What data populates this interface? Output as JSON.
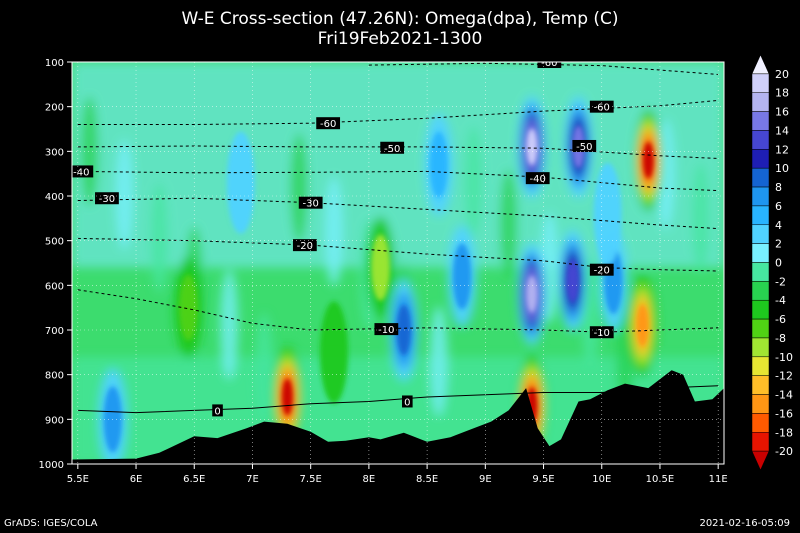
{
  "chart_data": {
    "type": "heatmap",
    "title": "W-E Cross-section (47.26N): Omega(dpa), Temp (C)",
    "subtitle": "Fri19Feb2021-1300",
    "footer_left": "GrADS: IGES/COLA",
    "footer_right": "2021-02-16-05:09",
    "xlim": [
      5.45,
      11.05
    ],
    "ylim": [
      1000,
      100
    ],
    "x_ticks": [
      5.5,
      6,
      6.5,
      7,
      7.5,
      8,
      8.5,
      9,
      9.5,
      10,
      10.5,
      11
    ],
    "x_tick_labels": [
      "5.5E",
      "6E",
      "6.5E",
      "7E",
      "7.5E",
      "8E",
      "8.5E",
      "9E",
      "9.5E",
      "10E",
      "10.5E",
      "11E"
    ],
    "y_ticks": [
      100,
      200,
      300,
      400,
      500,
      600,
      700,
      800,
      900,
      1000
    ],
    "y_tick_labels": [
      "100",
      "200",
      "300",
      "400",
      "500",
      "600",
      "700",
      "800",
      "900",
      "1000"
    ],
    "colorbar": {
      "levels": [
        "20",
        "18",
        "16",
        "14",
        "12",
        "10",
        "8",
        "6",
        "4",
        "2",
        "0",
        "-2",
        "-4",
        "-6",
        "-8",
        "-10",
        "-12",
        "-14",
        "-16",
        "-18",
        "-20"
      ],
      "colors": [
        "#f0f0ff",
        "#d0d0fa",
        "#b4b4f0",
        "#7878e6",
        "#4646d2",
        "#1e1eb4",
        "#1464d2",
        "#1e96f0",
        "#28b4ff",
        "#50d2ff",
        "#78f0ff",
        "#46e6a0",
        "#28d250",
        "#1ec81e",
        "#50d214",
        "#a0e632",
        "#e6e632",
        "#ffbe28",
        "#ff9614",
        "#ff5a00",
        "#e61400",
        "#c80000"
      ]
    },
    "omega_features": [
      {
        "x": 9.4,
        "p": 290,
        "omega": 20
      },
      {
        "x": 9.8,
        "p": 290,
        "omega": 16
      },
      {
        "x": 9.4,
        "p": 620,
        "omega": 18
      },
      {
        "x": 9.75,
        "p": 590,
        "omega": 14
      },
      {
        "x": 10.4,
        "p": 320,
        "omega": -20
      },
      {
        "x": 10.35,
        "p": 690,
        "omega": -14
      },
      {
        "x": 7.3,
        "p": 850,
        "omega": -20
      },
      {
        "x": 9.4,
        "p": 870,
        "omega": -20
      },
      {
        "x": 8.3,
        "p": 700,
        "omega": 10
      },
      {
        "x": 8.8,
        "p": 580,
        "omega": 8
      },
      {
        "x": 5.8,
        "p": 900,
        "omega": 8
      },
      {
        "x": 10.1,
        "p": 590,
        "omega": 8
      },
      {
        "x": 8.6,
        "p": 330,
        "omega": 6
      },
      {
        "x": 6.9,
        "p": 370,
        "omega": 4
      },
      {
        "x": 8.1,
        "p": 560,
        "omega": -8
      },
      {
        "x": 10.05,
        "p": 440,
        "omega": 4
      },
      {
        "x": 6.45,
        "p": 650,
        "omega": -6
      },
      {
        "x": 7.7,
        "p": 750,
        "omega": -4
      }
    ],
    "temperature_contours": [
      {
        "label": "-60",
        "points": [
          [
            5.5,
            240
          ],
          [
            6.5,
            240
          ],
          [
            7.5,
            237
          ],
          [
            8.5,
            226
          ],
          [
            9.5,
            210
          ],
          [
            10.5,
            198
          ],
          [
            11,
            186
          ]
        ],
        "label_at": [
          7.65,
          237
        ]
      },
      {
        "label": "-60",
        "points": [
          [
            8.0,
            107
          ],
          [
            9.0,
            103
          ],
          [
            10.0,
            108
          ],
          [
            11,
            128
          ]
        ],
        "label_at": [
          9.55,
          100
        ]
      },
      {
        "label": "-50",
        "points": [
          [
            5.5,
            290
          ],
          [
            6.5,
            288
          ],
          [
            7.5,
            290
          ],
          [
            8.5,
            290
          ],
          [
            9.5,
            293
          ],
          [
            10.5,
            310
          ],
          [
            11,
            316
          ]
        ],
        "label_at": [
          8.2,
          292
        ]
      },
      {
        "label": "-40",
        "points": [
          [
            5.5,
            345
          ],
          [
            6.5,
            348
          ],
          [
            7.5,
            347
          ],
          [
            8.5,
            345
          ],
          [
            9.5,
            358
          ],
          [
            10.0,
            370
          ],
          [
            10.5,
            382
          ],
          [
            11,
            388
          ]
        ],
        "label_at": [
          9.45,
          360
        ]
      },
      {
        "label": "-30",
        "points": [
          [
            5.5,
            410
          ],
          [
            6.5,
            405
          ],
          [
            7.5,
            415
          ],
          [
            8.5,
            430
          ],
          [
            9.5,
            445
          ],
          [
            10.5,
            465
          ],
          [
            11,
            473
          ]
        ],
        "label_at": [
          7.5,
          415
        ]
      },
      {
        "label": "-20",
        "points": [
          [
            5.5,
            495
          ],
          [
            6.5,
            500
          ],
          [
            7.5,
            510
          ],
          [
            8.5,
            530
          ],
          [
            9.5,
            545
          ],
          [
            10.0,
            560
          ],
          [
            10.5,
            565
          ],
          [
            11,
            568
          ]
        ],
        "label_at": [
          7.45,
          510
        ]
      },
      {
        "label": "-10",
        "points": [
          [
            5.5,
            610
          ],
          [
            6.0,
            630
          ],
          [
            6.5,
            655
          ],
          [
            7.0,
            685
          ],
          [
            7.5,
            700
          ],
          [
            8.5,
            695
          ],
          [
            9.5,
            700
          ],
          [
            10.0,
            705
          ],
          [
            10.5,
            700
          ],
          [
            11,
            695
          ]
        ],
        "label_at": [
          8.15,
          698
        ]
      },
      {
        "label": "0",
        "points": [
          [
            5.5,
            880
          ],
          [
            6.0,
            885
          ],
          [
            6.5,
            880
          ],
          [
            7.0,
            875
          ],
          [
            7.5,
            865
          ],
          [
            8.0,
            860
          ],
          [
            8.5,
            850
          ],
          [
            9.0,
            845
          ],
          [
            9.5,
            840
          ],
          [
            10.0,
            840
          ],
          [
            10.5,
            830
          ],
          [
            11,
            825
          ]
        ],
        "label_at": [
          6.7,
          880
        ]
      }
    ],
    "contour_edge_labels": [
      {
        "label": "-40",
        "at": [
          5.53,
          345
        ]
      },
      {
        "label": "-30",
        "at": [
          5.75,
          405
        ]
      },
      {
        "label": "-60",
        "at": [
          10.0,
          200
        ]
      },
      {
        "label": "-50",
        "at": [
          9.85,
          288
        ]
      },
      {
        "label": "-20",
        "at": [
          10.0,
          565
        ]
      },
      {
        "label": "-10",
        "at": [
          10.0,
          705
        ]
      },
      {
        "label": "0",
        "at": [
          8.33,
          860
        ]
      }
    ],
    "terrain_profile": [
      [
        5.45,
        990
      ],
      [
        6.0,
        988
      ],
      [
        6.2,
        975
      ],
      [
        6.5,
        938
      ],
      [
        6.7,
        942
      ],
      [
        6.95,
        920
      ],
      [
        7.1,
        905
      ],
      [
        7.3,
        910
      ],
      [
        7.5,
        928
      ],
      [
        7.65,
        950
      ],
      [
        7.8,
        948
      ],
      [
        8.0,
        940
      ],
      [
        8.1,
        945
      ],
      [
        8.3,
        930
      ],
      [
        8.5,
        950
      ],
      [
        8.7,
        940
      ],
      [
        8.9,
        920
      ],
      [
        9.05,
        905
      ],
      [
        9.2,
        880
      ],
      [
        9.35,
        830
      ],
      [
        9.45,
        920
      ],
      [
        9.55,
        960
      ],
      [
        9.65,
        945
      ],
      [
        9.8,
        860
      ],
      [
        9.9,
        855
      ],
      [
        10.05,
        835
      ],
      [
        10.2,
        820
      ],
      [
        10.4,
        830
      ],
      [
        10.6,
        790
      ],
      [
        10.7,
        800
      ],
      [
        10.8,
        860
      ],
      [
        10.95,
        855
      ],
      [
        11.05,
        830
      ]
    ]
  }
}
